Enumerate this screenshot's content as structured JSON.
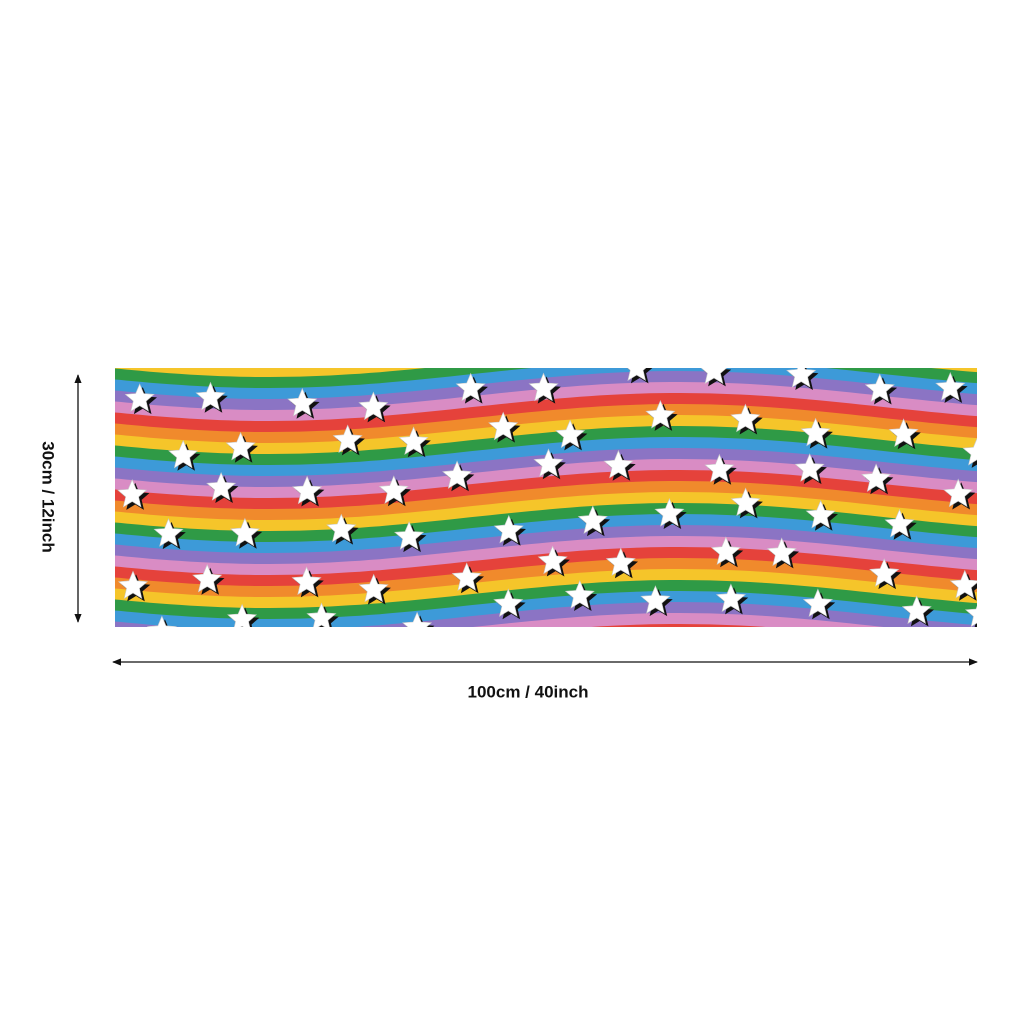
{
  "dimensions": {
    "height_label": "30cm / 12inch",
    "width_label": "100cm / 40inch"
  }
}
